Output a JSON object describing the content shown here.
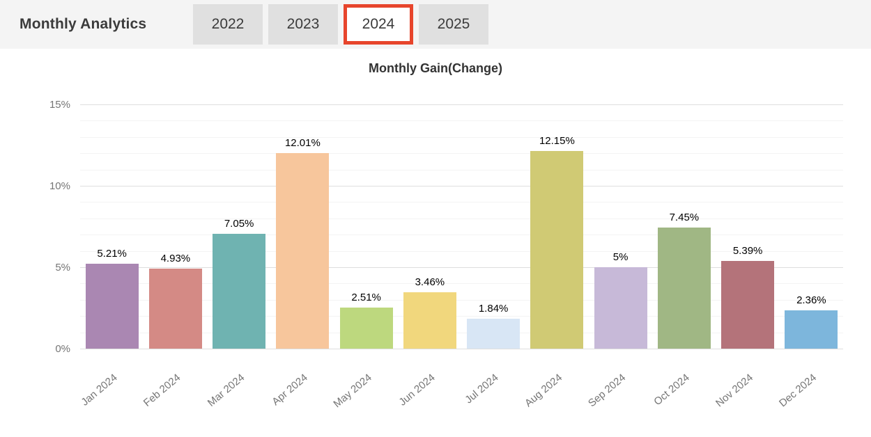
{
  "header": {
    "title": "Monthly Analytics",
    "tabs": [
      {
        "label": "2022",
        "active": false
      },
      {
        "label": "2023",
        "active": false
      },
      {
        "label": "2024",
        "active": true
      },
      {
        "label": "2025",
        "active": false
      }
    ]
  },
  "chart_data": {
    "type": "bar",
    "title": "Monthly Gain(Change)",
    "categories": [
      "Jan 2024",
      "Feb 2024",
      "Mar 2024",
      "Apr 2024",
      "May 2024",
      "Jun 2024",
      "Jul 2024",
      "Aug 2024",
      "Sep 2024",
      "Oct 2024",
      "Nov 2024",
      "Dec 2024"
    ],
    "values": [
      5.21,
      4.93,
      7.05,
      12.01,
      2.51,
      3.46,
      1.84,
      12.15,
      5,
      7.45,
      5.39,
      2.36
    ],
    "value_labels": [
      "5.21%",
      "4.93%",
      "7.05%",
      "12.01%",
      "2.51%",
      "3.46%",
      "1.84%",
      "12.15%",
      "5%",
      "7.45%",
      "5.39%",
      "2.36%"
    ],
    "bar_colors": [
      "#aa87b2",
      "#d48a85",
      "#6fb3b1",
      "#f7c69c",
      "#bdd87e",
      "#f1d77d",
      "#d8e6f5",
      "#d0ca74",
      "#c7b9d8",
      "#a0b784",
      "#b4737a",
      "#7db6dc"
    ],
    "xlabel": "",
    "ylabel": "",
    "ylim": [
      0,
      15
    ],
    "y_ticks": [
      {
        "value": 0,
        "label": "0%"
      },
      {
        "value": 5,
        "label": "5%"
      },
      {
        "value": 10,
        "label": "10%"
      },
      {
        "value": 15,
        "label": "15%"
      }
    ],
    "grid": true,
    "grid_minor_step": 1,
    "grid_major_step": 5,
    "legend": "none"
  },
  "colors": {
    "header_bg": "#f4f4f4",
    "tab_bg": "#e0e0e0",
    "active_tab_border": "#e7452c",
    "grid_minor": "#f3f3f3",
    "grid_major": "#dedede",
    "axis_text": "#757575",
    "value_text": "#000000"
  }
}
